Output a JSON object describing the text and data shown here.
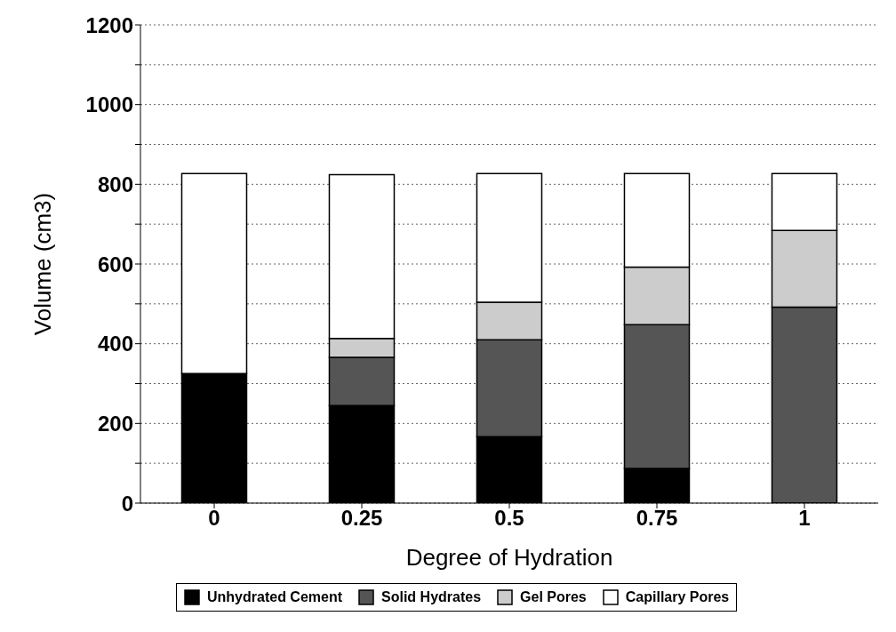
{
  "chart_data": {
    "type": "bar",
    "stacked": true,
    "xlabel": "Degree of Hydration",
    "ylabel": "Volume (cm3)",
    "categories": [
      "0",
      "0.25",
      "0.5",
      "0.75",
      "1"
    ],
    "series": [
      {
        "name": "Unhydrated Cement",
        "color": "#000000",
        "values": [
          325,
          245,
          167,
          87,
          0
        ]
      },
      {
        "name": "Solid Hydrates",
        "color": "#555555",
        "values": [
          0,
          121,
          243,
          361,
          492
        ]
      },
      {
        "name": "Gel Pores",
        "color": "#cccccc",
        "values": [
          0,
          47,
          94,
          144,
          192
        ]
      },
      {
        "name": "Capillary Pores",
        "color": "#ffffff",
        "values": [
          502,
          411,
          323,
          235,
          143
        ]
      }
    ],
    "ylim": [
      0,
      1200
    ],
    "yticks": [
      0,
      {
        "value": 100,
        "label": null
      },
      200,
      {
        "value": 300,
        "label": null
      },
      400,
      {
        "value": 500,
        "label": null
      },
      600,
      {
        "value": 700,
        "label": null
      },
      800,
      {
        "value": 900,
        "label": null
      },
      1000,
      {
        "value": 1100,
        "label": null
      },
      1200
    ],
    "grid": "y",
    "legend": "bottom"
  }
}
